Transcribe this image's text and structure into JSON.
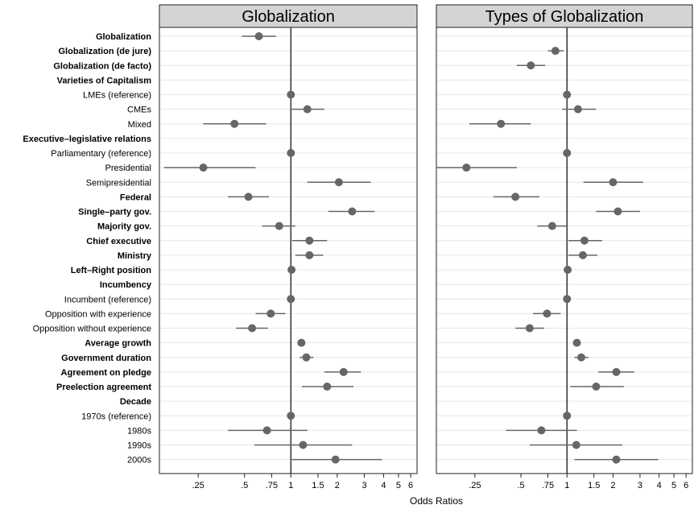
{
  "chart_data": {
    "type": "scatter",
    "subtype": "coefficient-plot",
    "xlabel": "Odds Ratios",
    "x_scale": "log",
    "xlim": [
      0.14,
      6.6
    ],
    "x_ticks": [
      0.25,
      0.5,
      0.75,
      1,
      1.5,
      2,
      3,
      4,
      5,
      6
    ],
    "x_tick_labels": [
      ".25",
      ".5",
      ".75",
      "1",
      "1.5",
      "2",
      "3",
      "4",
      "5",
      "6"
    ],
    "reference_line": 1,
    "colors": {
      "point": "#666666",
      "ci": "#666666",
      "refline": "#333333",
      "title_bg": "#d4d4d4",
      "grid": "#e6e6e6"
    },
    "rows": [
      {
        "label": "Globalization",
        "bold": true
      },
      {
        "label": "Globalization (de jure)",
        "bold": true
      },
      {
        "label": "Globalization (de facto)",
        "bold": true
      },
      {
        "label": "Varieties of Capitalism",
        "bold": true
      },
      {
        "label": "LMEs (reference)",
        "bold": false
      },
      {
        "label": "CMEs",
        "bold": false
      },
      {
        "label": "Mixed",
        "bold": false
      },
      {
        "label": "Executive–legislative relations",
        "bold": true
      },
      {
        "label": "Parliamentary (reference)",
        "bold": false
      },
      {
        "label": "Presidential",
        "bold": false
      },
      {
        "label": "Semipresidential",
        "bold": false
      },
      {
        "label": "Federal",
        "bold": true
      },
      {
        "label": "Single–party gov.",
        "bold": true
      },
      {
        "label": "Majority gov.",
        "bold": true
      },
      {
        "label": "Chief executive",
        "bold": true
      },
      {
        "label": "Ministry",
        "bold": true
      },
      {
        "label": "Left–Right position",
        "bold": true
      },
      {
        "label": "Incumbency",
        "bold": true
      },
      {
        "label": "Incumbent (reference)",
        "bold": false
      },
      {
        "label": "Opposition with experience",
        "bold": false
      },
      {
        "label": "Opposition without experience",
        "bold": false
      },
      {
        "label": "Average growth",
        "bold": true
      },
      {
        "label": "Government duration",
        "bold": true
      },
      {
        "label": "Agreement on pledge",
        "bold": true
      },
      {
        "label": "Preelection agreement",
        "bold": true
      },
      {
        "label": "Decade",
        "bold": true
      },
      {
        "label": "1970s (reference)",
        "bold": false
      },
      {
        "label": "1980s",
        "bold": false
      },
      {
        "label": "1990s",
        "bold": false
      },
      {
        "label": "2000s",
        "bold": false
      }
    ],
    "panels": [
      {
        "title": "Globalization",
        "points": [
          {
            "row": 0,
            "est": 0.62,
            "lo": 0.48,
            "hi": 0.8
          },
          {
            "row": 4,
            "est": 1.0,
            "lo": 1.0,
            "hi": 1.0
          },
          {
            "row": 5,
            "est": 1.28,
            "lo": 1.0,
            "hi": 1.65
          },
          {
            "row": 6,
            "est": 0.43,
            "lo": 0.27,
            "hi": 0.69
          },
          {
            "row": 8,
            "est": 1.0,
            "lo": 1.0,
            "hi": 1.0
          },
          {
            "row": 9,
            "est": 0.27,
            "lo": 0.15,
            "hi": 0.59
          },
          {
            "row": 10,
            "est": 2.05,
            "lo": 1.28,
            "hi": 3.3
          },
          {
            "row": 11,
            "est": 0.53,
            "lo": 0.39,
            "hi": 0.72
          },
          {
            "row": 12,
            "est": 2.5,
            "lo": 1.75,
            "hi": 3.5
          },
          {
            "row": 13,
            "est": 0.84,
            "lo": 0.65,
            "hi": 1.07
          },
          {
            "row": 14,
            "est": 1.32,
            "lo": 1.02,
            "hi": 1.72
          },
          {
            "row": 15,
            "est": 1.32,
            "lo": 1.07,
            "hi": 1.62
          },
          {
            "row": 16,
            "est": 1.01,
            "lo": 0.99,
            "hi": 1.03
          },
          {
            "row": 18,
            "est": 1.0,
            "lo": 1.0,
            "hi": 1.0
          },
          {
            "row": 19,
            "est": 0.74,
            "lo": 0.59,
            "hi": 0.92
          },
          {
            "row": 20,
            "est": 0.56,
            "lo": 0.44,
            "hi": 0.71
          },
          {
            "row": 21,
            "est": 1.17,
            "lo": 1.15,
            "hi": 1.19
          },
          {
            "row": 22,
            "est": 1.26,
            "lo": 1.14,
            "hi": 1.4
          },
          {
            "row": 23,
            "est": 2.2,
            "lo": 1.65,
            "hi": 2.85
          },
          {
            "row": 24,
            "est": 1.72,
            "lo": 1.18,
            "hi": 2.55
          },
          {
            "row": 26,
            "est": 1.0,
            "lo": 1.0,
            "hi": 1.0
          },
          {
            "row": 27,
            "est": 0.7,
            "lo": 0.39,
            "hi": 1.28
          },
          {
            "row": 28,
            "est": 1.2,
            "lo": 0.58,
            "hi": 2.5
          },
          {
            "row": 29,
            "est": 1.95,
            "lo": 1.0,
            "hi": 3.9
          }
        ]
      },
      {
        "title": "Types of Globalization",
        "points": [
          {
            "row": 1,
            "est": 0.84,
            "lo": 0.75,
            "hi": 0.95
          },
          {
            "row": 2,
            "est": 0.58,
            "lo": 0.47,
            "hi": 0.72
          },
          {
            "row": 4,
            "est": 1.0,
            "lo": 1.0,
            "hi": 1.0
          },
          {
            "row": 5,
            "est": 1.18,
            "lo": 0.93,
            "hi": 1.55
          },
          {
            "row": 6,
            "est": 0.37,
            "lo": 0.23,
            "hi": 0.58
          },
          {
            "row": 8,
            "est": 1.0,
            "lo": 1.0,
            "hi": 1.0
          },
          {
            "row": 9,
            "est": 0.22,
            "lo": 0.14,
            "hi": 0.47
          },
          {
            "row": 10,
            "est": 2.0,
            "lo": 1.28,
            "hi": 3.15
          },
          {
            "row": 11,
            "est": 0.46,
            "lo": 0.33,
            "hi": 0.66
          },
          {
            "row": 12,
            "est": 2.15,
            "lo": 1.55,
            "hi": 3.0
          },
          {
            "row": 13,
            "est": 0.8,
            "lo": 0.64,
            "hi": 1.0
          },
          {
            "row": 14,
            "est": 1.3,
            "lo": 1.02,
            "hi": 1.7
          },
          {
            "row": 15,
            "est": 1.27,
            "lo": 1.02,
            "hi": 1.58
          },
          {
            "row": 16,
            "est": 1.01,
            "lo": 0.99,
            "hi": 1.03
          },
          {
            "row": 18,
            "est": 1.0,
            "lo": 1.0,
            "hi": 1.0
          },
          {
            "row": 19,
            "est": 0.74,
            "lo": 0.6,
            "hi": 0.91
          },
          {
            "row": 20,
            "est": 0.57,
            "lo": 0.46,
            "hi": 0.71
          },
          {
            "row": 21,
            "est": 1.16,
            "lo": 1.14,
            "hi": 1.18
          },
          {
            "row": 22,
            "est": 1.24,
            "lo": 1.12,
            "hi": 1.38
          },
          {
            "row": 23,
            "est": 2.1,
            "lo": 1.6,
            "hi": 2.75
          },
          {
            "row": 24,
            "est": 1.55,
            "lo": 1.05,
            "hi": 2.35
          },
          {
            "row": 26,
            "est": 1.0,
            "lo": 1.0,
            "hi": 1.0
          },
          {
            "row": 27,
            "est": 0.68,
            "lo": 0.4,
            "hi": 1.16
          },
          {
            "row": 28,
            "est": 1.15,
            "lo": 0.57,
            "hi": 2.3
          },
          {
            "row": 29,
            "est": 2.1,
            "lo": 1.12,
            "hi": 3.95
          }
        ]
      }
    ]
  }
}
